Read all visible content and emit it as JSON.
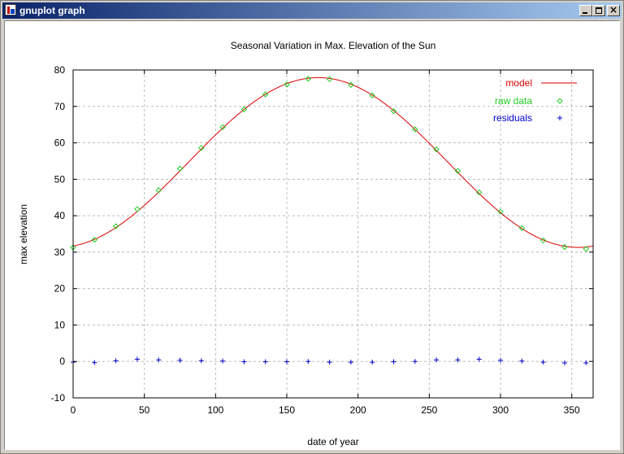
{
  "window": {
    "title": "gnuplot graph",
    "minimize_icon": "minimize-icon",
    "maximize_icon": "maximize-icon",
    "close_icon": "close-icon",
    "close_glyph": "×"
  },
  "colors": {
    "model": "#dd0000",
    "raw": "#22cc22",
    "residuals": "#0000cc",
    "grid": "#bbbbbb",
    "axis": "#000000"
  },
  "chart_data": {
    "type": "scatter",
    "title": "Seasonal Variation in Max. Elevation of the Sun",
    "xlabel": "date of year",
    "ylabel": "max elevation",
    "xlim": [
      0,
      365
    ],
    "ylim": [
      -10,
      80
    ],
    "xticks": [
      0,
      50,
      100,
      150,
      200,
      250,
      300,
      350
    ],
    "yticks": [
      -10,
      0,
      10,
      20,
      30,
      40,
      50,
      60,
      70,
      80
    ],
    "grid": true,
    "legend_position": "top-right",
    "model": {
      "name": "model",
      "mean": 54.6,
      "amplitude": 23.3,
      "period_days": 365,
      "peak_day": 172
    },
    "series": [
      {
        "name": "raw data",
        "marker": "diamond",
        "x": [
          0,
          15,
          30,
          45,
          60,
          75,
          90,
          105,
          120,
          135,
          150,
          165,
          180,
          195,
          210,
          225,
          240,
          255,
          270,
          285,
          300,
          315,
          330,
          345,
          360
        ],
        "y": [
          31.3,
          33.4,
          37.1,
          41.8,
          47.0,
          52.9,
          58.6,
          64.3,
          69.2,
          73.3,
          76.0,
          77.6,
          77.5,
          75.9,
          73.0,
          68.7,
          63.7,
          58.2,
          52.3,
          46.4,
          41.1,
          36.6,
          33.2,
          31.4,
          30.9
        ]
      },
      {
        "name": "residuals",
        "marker": "plus",
        "x": [
          0,
          15,
          30,
          45,
          60,
          75,
          90,
          105,
          120,
          135,
          150,
          165,
          180,
          195,
          210,
          225,
          240,
          255,
          270,
          285,
          300,
          315,
          330,
          345,
          360
        ],
        "y": [
          -0.2,
          -0.3,
          0.2,
          0.6,
          0.4,
          0.3,
          0.2,
          0.1,
          -0.1,
          -0.1,
          -0.1,
          0.0,
          -0.2,
          -0.2,
          -0.2,
          -0.1,
          0.0,
          0.4,
          0.4,
          0.6,
          0.3,
          0.1,
          -0.2,
          -0.4,
          -0.4
        ]
      }
    ]
  }
}
